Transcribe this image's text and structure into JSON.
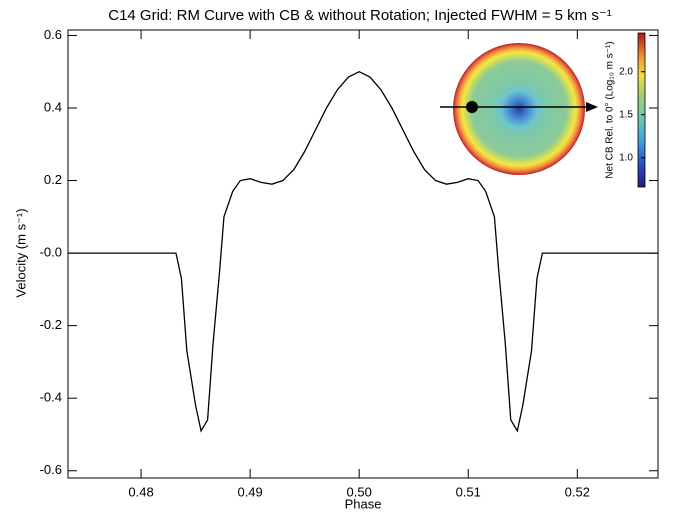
{
  "chart_data": {
    "type": "line",
    "title": "C14 Grid: RM Curve with CB & without Rotation; Injected FWHM = 5 km s⁻¹",
    "x_label": "Phase",
    "y_label": "Velocity (m s⁻¹)",
    "x": [
      0.4733,
      0.4832,
      0.4837,
      0.4842,
      0.485,
      0.4855,
      0.4861,
      0.4866,
      0.4872,
      0.4876,
      0.4884,
      0.4891,
      0.49,
      0.491,
      0.492,
      0.493,
      0.494,
      0.495,
      0.496,
      0.497,
      0.498,
      0.499,
      0.5,
      0.501,
      0.502,
      0.503,
      0.504,
      0.505,
      0.506,
      0.507,
      0.508,
      0.509,
      0.51,
      0.5109,
      0.5116,
      0.5124,
      0.5128,
      0.5134,
      0.5139,
      0.5145,
      0.515,
      0.5158,
      0.5163,
      0.5168,
      0.5274
    ],
    "values": [
      0,
      0,
      -0.07,
      -0.27,
      -0.42,
      -0.49,
      -0.46,
      -0.25,
      -0.05,
      0.1,
      0.17,
      0.2,
      0.205,
      0.195,
      0.19,
      0.2,
      0.23,
      0.28,
      0.34,
      0.4,
      0.45,
      0.485,
      0.5,
      0.485,
      0.45,
      0.4,
      0.34,
      0.28,
      0.23,
      0.2,
      0.19,
      0.195,
      0.205,
      0.2,
      0.17,
      0.1,
      -0.05,
      -0.25,
      -0.46,
      -0.49,
      -0.42,
      -0.27,
      -0.07,
      0,
      0
    ],
    "color": "#000000",
    "xlim": [
      0.4733,
      0.5274
    ],
    "xticks": [
      0.48,
      0.49,
      {
        "value": 0.5,
        "label": "0.50"
      },
      0.51,
      0.52
    ],
    "ylim": [
      -0.62,
      0.615
    ],
    "yticks": [
      0.6,
      0.4,
      0.2,
      {
        "value": 0,
        "label": "-0.0"
      },
      -0.2,
      -0.4,
      -0.6
    ],
    "colorbar": {
      "label": "Net CB Rel. to 0° (Log₁₀ m s⁻¹)",
      "lim": [
        0.66,
        2.45
      ],
      "ticks": [
        {
          "value": 1,
          "label": "1.0"
        },
        {
          "value": 1.5,
          "label": "1.5"
        },
        {
          "value": 2,
          "label": "2.0"
        }
      ]
    }
  }
}
